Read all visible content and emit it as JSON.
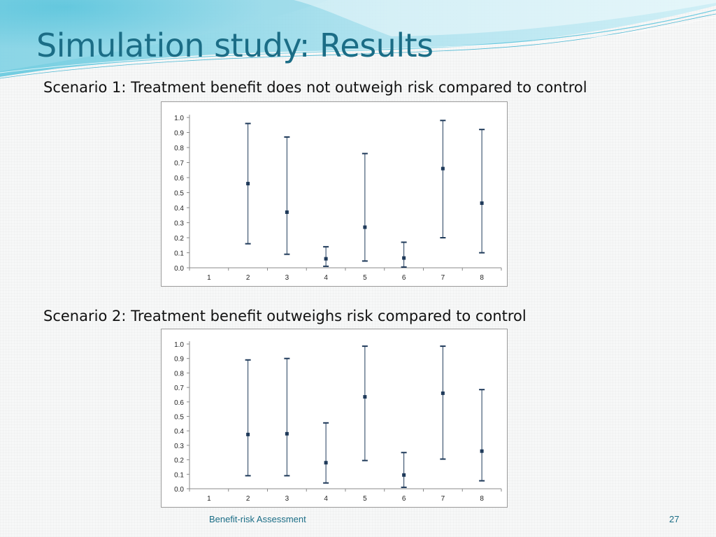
{
  "slide": {
    "title": "Simulation study: Results",
    "footer": "Benefit-risk Assessment",
    "page_number": "27",
    "accent_color": "#1b6d86"
  },
  "chart_data": [
    {
      "type": "scatter",
      "caption": "Scenario 1: Treatment benefit does not outweigh risk compared to control",
      "title": "",
      "xlabel": "",
      "ylabel": "",
      "ylim": [
        0,
        1
      ],
      "y_ticks": [
        "0.0",
        "0.1",
        "0.2",
        "0.3",
        "0.4",
        "0.5",
        "0.6",
        "0.7",
        "0.8",
        "0.9",
        "1.0"
      ],
      "categories": [
        "1",
        "2",
        "3",
        "4",
        "5",
        "6",
        "7",
        "8"
      ],
      "points": [
        null,
        0.56,
        0.37,
        0.06,
        0.27,
        0.065,
        0.66,
        0.43
      ],
      "lower": [
        null,
        0.16,
        0.09,
        0.01,
        0.045,
        0.005,
        0.2,
        0.1
      ],
      "upper": [
        null,
        0.96,
        0.87,
        0.14,
        0.76,
        0.17,
        0.98,
        0.92
      ],
      "grid": false,
      "marker_color": "#1f3a5a"
    },
    {
      "type": "scatter",
      "caption": "Scenario 2: Treatment benefit outweighs risk compared to control",
      "title": "",
      "xlabel": "",
      "ylabel": "",
      "ylim": [
        0,
        1
      ],
      "y_ticks": [
        "0.0",
        "0.1",
        "0.2",
        "0.3",
        "0.4",
        "0.5",
        "0.6",
        "0.7",
        "0.8",
        "0.9",
        "1.0"
      ],
      "categories": [
        "1",
        "2",
        "3",
        "4",
        "5",
        "6",
        "7",
        "8"
      ],
      "points": [
        null,
        0.375,
        0.38,
        0.18,
        0.635,
        0.095,
        0.66,
        0.26
      ],
      "lower": [
        null,
        0.09,
        0.09,
        0.04,
        0.195,
        0.01,
        0.205,
        0.055
      ],
      "upper": [
        null,
        0.89,
        0.9,
        0.455,
        0.985,
        0.25,
        0.985,
        0.685
      ],
      "grid": false,
      "marker_color": "#1f3a5a"
    }
  ]
}
